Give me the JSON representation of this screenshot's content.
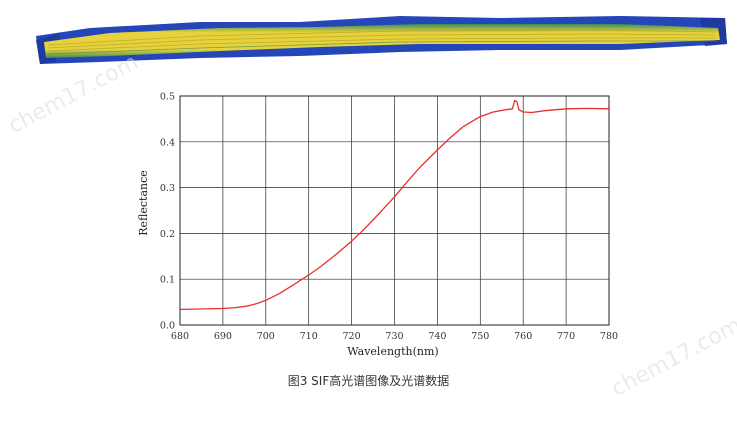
{
  "caption": "图3 SIF高光谱图像及光谱数据",
  "watermark": "chem17.com",
  "strip_image": {
    "colors": {
      "background": "#2446b8",
      "core": "#e6d23c",
      "edge": "#3c8c5a",
      "stripe": "#b4a01e"
    }
  },
  "chart_data": {
    "type": "line",
    "title": "",
    "xlabel": "Wavelength(nm)",
    "ylabel": "Reflectance",
    "xlim": [
      680,
      780
    ],
    "ylim": [
      0,
      0.5
    ],
    "xticks": [
      680,
      690,
      700,
      710,
      720,
      730,
      740,
      750,
      760,
      770,
      780
    ],
    "yticks": [
      0.0,
      0.1,
      0.2,
      0.3,
      0.4,
      0.5
    ],
    "xtick_labels": [
      "680",
      "690",
      "700",
      "710",
      "720",
      "730",
      "740",
      "750",
      "760",
      "770",
      "780"
    ],
    "ytick_labels": [
      "0.0",
      "0.1",
      "0.2",
      "0.3",
      "0.4",
      "0.5"
    ],
    "grid": true,
    "series": [
      {
        "color": "#e8302a",
        "x": [
          680,
          685,
          690,
          693,
          696,
          698,
          700,
          703,
          706,
          710,
          713,
          716,
          720,
          723,
          726,
          730,
          733,
          736,
          740,
          743,
          746,
          750,
          753,
          756,
          757.5,
          758,
          758.5,
          759,
          760,
          762,
          765,
          770,
          775,
          780
        ],
        "y": [
          0.034,
          0.035,
          0.036,
          0.038,
          0.042,
          0.047,
          0.054,
          0.068,
          0.085,
          0.109,
          0.129,
          0.151,
          0.183,
          0.21,
          0.239,
          0.28,
          0.313,
          0.345,
          0.382,
          0.409,
          0.433,
          0.455,
          0.465,
          0.47,
          0.472,
          0.49,
          0.488,
          0.47,
          0.465,
          0.464,
          0.468,
          0.472,
          0.473,
          0.472
        ]
      }
    ]
  }
}
